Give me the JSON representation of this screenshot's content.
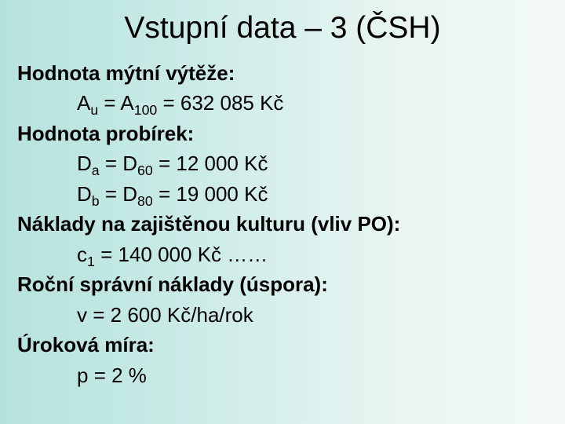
{
  "slide": {
    "title": "Vstupní data – 3 (ČSH)",
    "background_gradient": [
      "#b6e2dd",
      "#c8eae5",
      "#e8f5f2",
      "#f4f9f7"
    ],
    "title_fontsize": 39,
    "body_fontsize": 26,
    "text_color": "#000000",
    "sections": [
      {
        "heading": "Hodnota mýtní výtěže:",
        "lines": [
          {
            "var_base": "A",
            "var_sub": "u",
            "eq_base": "A",
            "eq_sub": "100",
            "value": "632 085 Kč"
          }
        ]
      },
      {
        "heading": "Hodnota probírek:",
        "lines": [
          {
            "var_base": "D",
            "var_sub": "a",
            "eq_base": "D",
            "eq_sub": "60",
            "value": "12 000 Kč"
          },
          {
            "var_base": "D",
            "var_sub": "b",
            "eq_base": "D",
            "eq_sub": "80",
            "value": "19 000 Kč"
          }
        ]
      },
      {
        "heading": "Náklady na zajištěnou kulturu (vliv PO):",
        "lines": [
          {
            "var_base": "c",
            "var_sub": "1",
            "value": "140 000 Kč ……"
          }
        ]
      },
      {
        "heading": "Roční správní náklady (úspora):",
        "lines": [
          {
            "var_base": "v",
            "value": "2 600 Kč/ha/rok"
          }
        ]
      },
      {
        "heading": "Úroková míra:",
        "lines": [
          {
            "var_base": "p",
            "value": "2 %"
          }
        ]
      }
    ]
  }
}
